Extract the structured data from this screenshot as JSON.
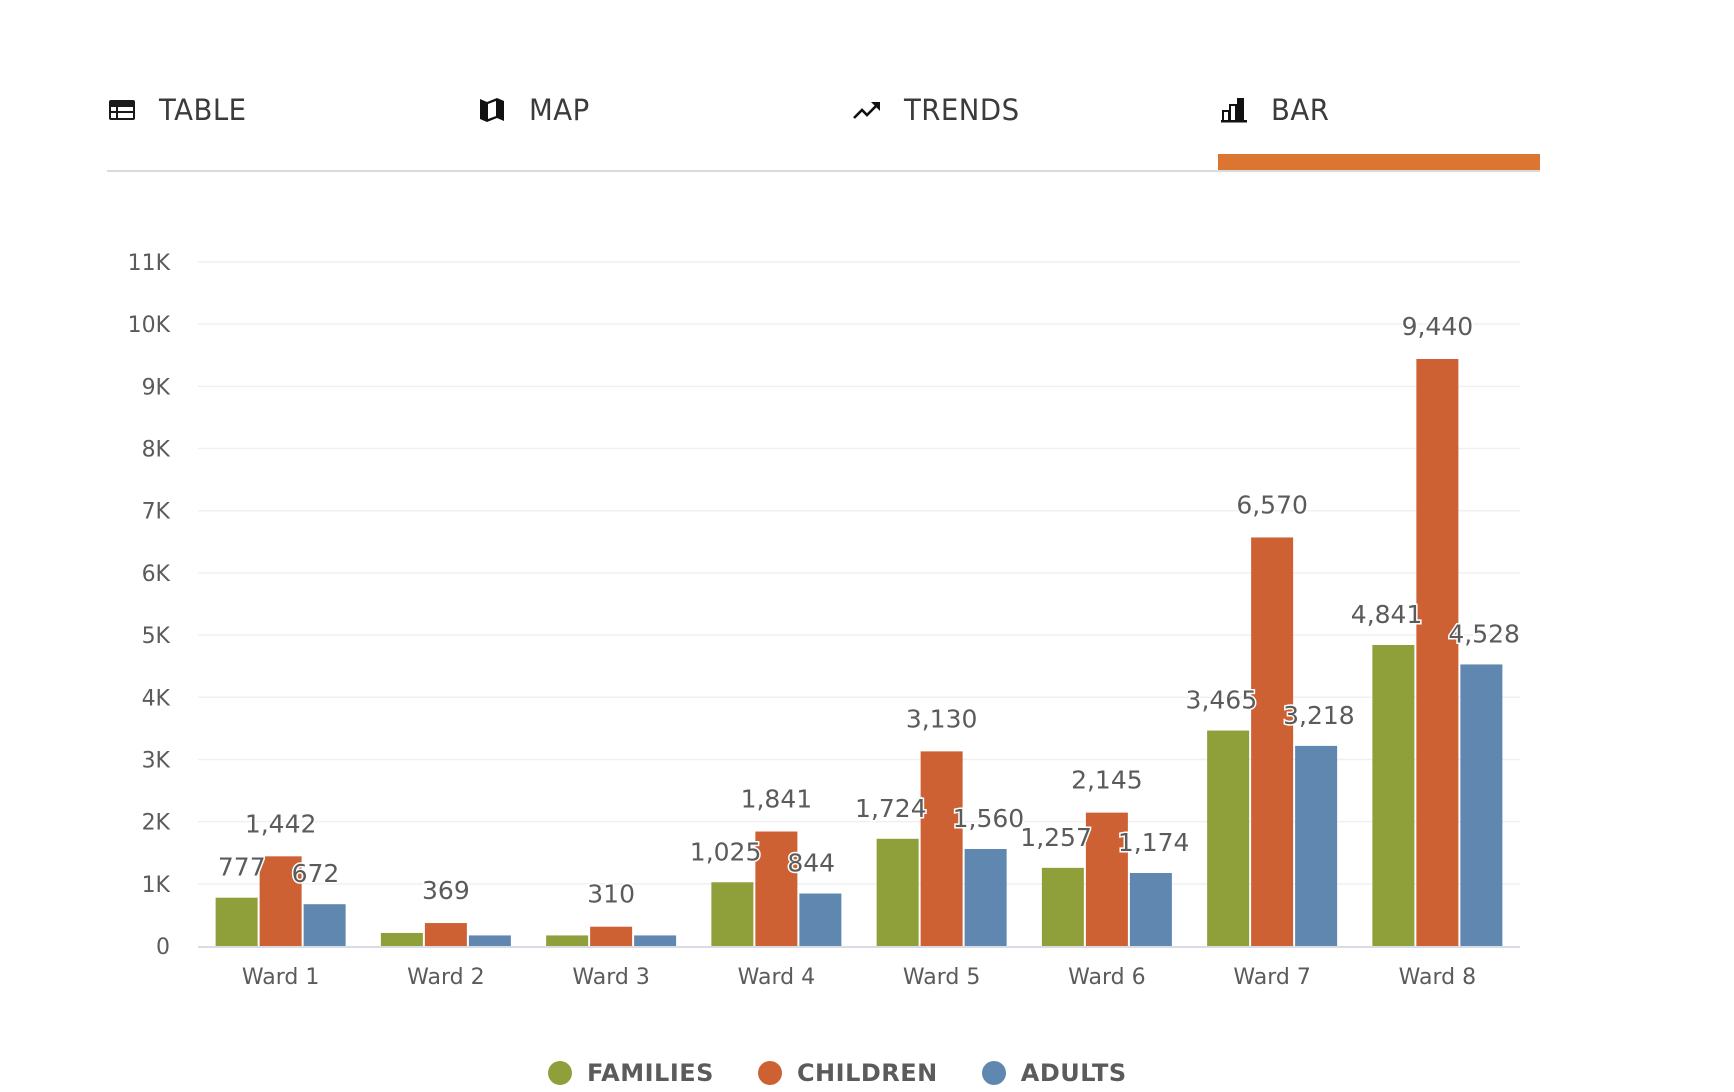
{
  "tabs": [
    {
      "label": "TABLE",
      "icon": "table-icon",
      "active": false
    },
    {
      "label": "MAP",
      "icon": "map-icon",
      "active": false
    },
    {
      "label": "TRENDS",
      "icon": "trending-up-icon",
      "active": false
    },
    {
      "label": "BAR",
      "icon": "bar-chart-icon",
      "active": true
    }
  ],
  "colors": {
    "accent": "#db7531",
    "families": "#8fa03b",
    "children": "#cd6134",
    "adults": "#5f87b0",
    "label_text": "#5b5b5b",
    "grid": "#f0f0f0",
    "axis": "#d8dde3"
  },
  "chart_data": {
    "type": "bar",
    "title": "",
    "xlabel": "",
    "ylabel": "",
    "ylim": [
      0,
      11000
    ],
    "grid": true,
    "legend_position": "bottom-center",
    "y_ticks": [
      0,
      1000,
      2000,
      3000,
      4000,
      5000,
      6000,
      7000,
      8000,
      9000,
      10000,
      11000
    ],
    "y_tick_labels": [
      "0",
      "1K",
      "2K",
      "3K",
      "4K",
      "5K",
      "6K",
      "7K",
      "8K",
      "9K",
      "10K",
      "11K"
    ],
    "categories": [
      "Ward 1",
      "Ward 2",
      "Ward 3",
      "Ward 4",
      "Ward 5",
      "Ward 6",
      "Ward 7",
      "Ward 8"
    ],
    "series": [
      {
        "name": "FAMILIES",
        "key": "families",
        "values": [
          777,
          210,
          170,
          1025,
          1724,
          1257,
          3465,
          4841
        ],
        "labels": [
          "777",
          "",
          "",
          "1,025",
          "1,724",
          "1,257",
          "3,465",
          "4,841"
        ]
      },
      {
        "name": "CHILDREN",
        "key": "children",
        "values": [
          1442,
          369,
          310,
          1841,
          3130,
          2145,
          6570,
          9440
        ],
        "labels": [
          "1,442",
          "369",
          "310",
          "1,841",
          "3,130",
          "2,145",
          "6,570",
          "9,440"
        ]
      },
      {
        "name": "ADULTS",
        "key": "adults",
        "values": [
          672,
          170,
          170,
          844,
          1560,
          1174,
          3218,
          4528
        ],
        "labels": [
          "672",
          "",
          "",
          "844",
          "1,560",
          "1,174",
          "3,218",
          "4,528"
        ]
      }
    ]
  }
}
